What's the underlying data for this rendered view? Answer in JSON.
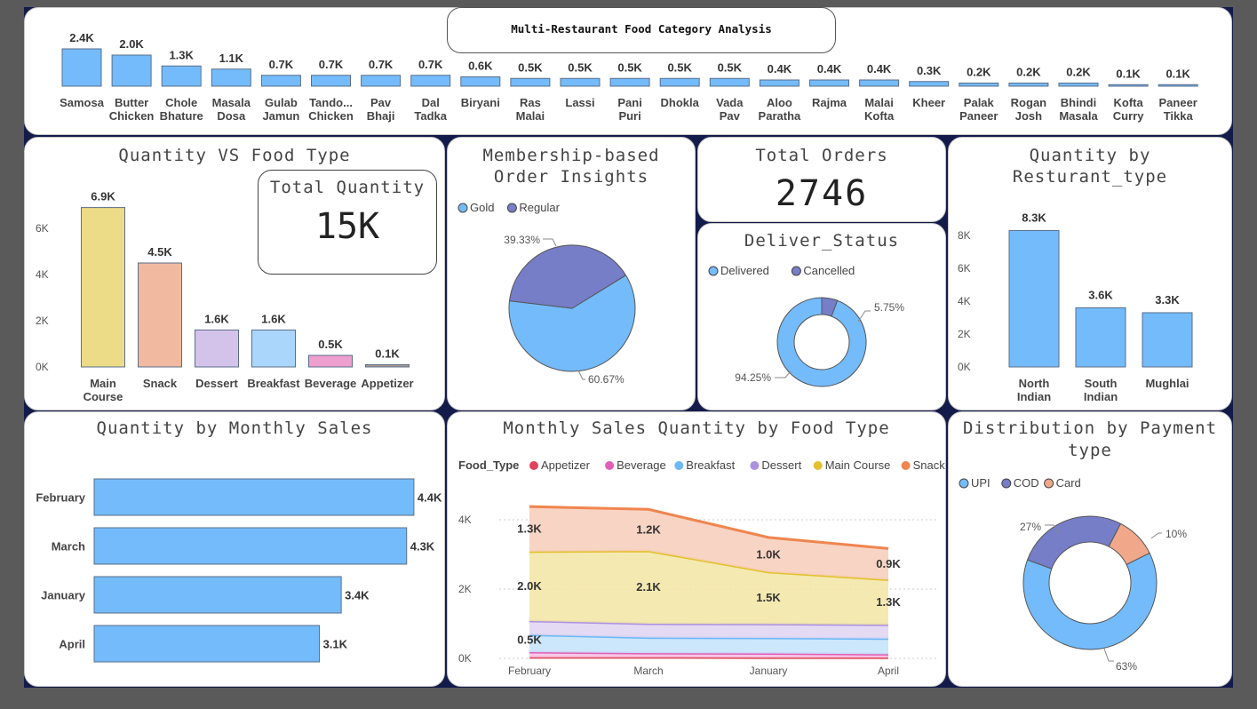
{
  "dashboard_title": "Multi-Restaurant Food Category Analysis",
  "chart_data": [
    {
      "id": "food-items",
      "type": "bar",
      "title": "",
      "categories": [
        [
          "Samosa"
        ],
        [
          "Butter",
          "Chicken"
        ],
        [
          "Chole",
          "Bhature"
        ],
        [
          "Masala",
          "Dosa"
        ],
        [
          "Gulab",
          "Jamun"
        ],
        [
          "Tando...",
          "Chicken"
        ],
        [
          "Pav",
          "Bhaji"
        ],
        [
          "Dal",
          "Tadka"
        ],
        [
          "Biryani"
        ],
        [
          "Ras",
          "Malai"
        ],
        [
          "Lassi"
        ],
        [
          "Pani",
          "Puri"
        ],
        [
          "Dhokla"
        ],
        [
          "Vada",
          "Pav"
        ],
        [
          "Aloo",
          "Paratha"
        ],
        [
          "Rajma"
        ],
        [
          "Malai",
          "Kofta"
        ],
        [
          "Kheer"
        ],
        [
          "Palak",
          "Paneer"
        ],
        [
          "Rogan",
          "Josh"
        ],
        [
          "Bhindi",
          "Masala"
        ],
        [
          "Kofta",
          "Curry"
        ],
        [
          "Paneer",
          "Tikka"
        ]
      ],
      "values": [
        2.4,
        2.0,
        1.3,
        1.1,
        0.7,
        0.7,
        0.7,
        0.7,
        0.6,
        0.5,
        0.5,
        0.5,
        0.5,
        0.5,
        0.4,
        0.4,
        0.4,
        0.3,
        0.2,
        0.2,
        0.2,
        0.1,
        0.1
      ],
      "labels": [
        "2.4K",
        "2.0K",
        "1.3K",
        "1.1K",
        "0.7K",
        "0.7K",
        "0.7K",
        "0.7K",
        "0.6K",
        "0.5K",
        "0.5K",
        "0.5K",
        "0.5K",
        "0.5K",
        "0.4K",
        "0.4K",
        "0.4K",
        "0.3K",
        "0.2K",
        "0.2K",
        "0.2K",
        "0.1K",
        "0.1K"
      ],
      "unit": "K"
    },
    {
      "id": "food-type",
      "type": "bar",
      "title": "Quantity VS Food Type",
      "categories": [
        [
          "Main",
          "Course"
        ],
        [
          "Snack"
        ],
        [
          "Dessert"
        ],
        [
          "Breakfast"
        ],
        [
          "Beverage"
        ],
        [
          "Appetizer"
        ]
      ],
      "values": [
        6.9,
        4.5,
        1.6,
        1.6,
        0.5,
        0.1
      ],
      "labels": [
        "6.9K",
        "4.5K",
        "1.6K",
        "1.6K",
        "0.5K",
        "0.1K"
      ],
      "colors": [
        "#ecdc88",
        "#f1b9a0",
        "#d3c3ea",
        "#aad6fc",
        "#ee9fcf",
        "#a89a90"
      ],
      "yticks": [
        "0K",
        "2K",
        "4K",
        "6K"
      ],
      "ylim": [
        0,
        7
      ]
    },
    {
      "id": "membership",
      "type": "pie",
      "title": "Membership-based Order Insights",
      "labels": [
        "Gold",
        "Regular"
      ],
      "values": [
        60.67,
        39.33
      ],
      "pct_labels": [
        "60.67%",
        "39.33%"
      ],
      "colors": [
        "#74bbfb",
        "#767ec8"
      ]
    },
    {
      "id": "deliver-status",
      "type": "pie",
      "title": "Deliver_Status",
      "labels": [
        "Delivered",
        "Cancelled"
      ],
      "values": [
        94.25,
        5.75
      ],
      "pct_labels": [
        "94.25%",
        "5.75%"
      ],
      "colors": [
        "#74bbfb",
        "#767ec8"
      ]
    },
    {
      "id": "restaurant-type",
      "type": "bar",
      "title": "Quantity by Resturant_type",
      "categories": [
        [
          "North",
          "Indian"
        ],
        [
          "South",
          "Indian"
        ],
        [
          "Mughlai"
        ]
      ],
      "values": [
        8.3,
        3.6,
        3.3
      ],
      "labels": [
        "8.3K",
        "3.6K",
        "3.3K"
      ],
      "yticks": [
        "0K",
        "2K",
        "4K",
        "6K",
        "8K"
      ],
      "ylim": [
        0,
        8.5
      ]
    },
    {
      "id": "monthly-sales",
      "type": "bar",
      "orientation": "horizontal",
      "title": "Quantity by Monthly Sales",
      "categories": [
        "February",
        "March",
        "January",
        "April"
      ],
      "values": [
        4.4,
        4.3,
        3.4,
        3.1
      ],
      "labels": [
        "4.4K",
        "4.3K",
        "3.4K",
        "3.1K"
      ]
    },
    {
      "id": "monthly-food-type",
      "type": "area",
      "title": "Monthly Sales Quantity by Food Type",
      "legend_title": "Food_Type",
      "x": [
        "February",
        "March",
        "January",
        "April"
      ],
      "yticks": [
        "0K",
        "2K",
        "4K"
      ],
      "ylim": [
        0,
        4.5
      ],
      "series": [
        {
          "name": "Appetizer",
          "color": "#e0445c",
          "values": [
            0.03,
            0.03,
            0.02,
            0.02
          ]
        },
        {
          "name": "Beverage",
          "color": "#e25fb8",
          "values": [
            0.15,
            0.12,
            0.12,
            0.1
          ]
        },
        {
          "name": "Breakfast",
          "color": "#6cb8f6",
          "values": [
            0.5,
            0.45,
            0.45,
            0.45
          ]
        },
        {
          "name": "Dessert",
          "color": "#ac91e0",
          "values": [
            0.4,
            0.4,
            0.4,
            0.4
          ]
        },
        {
          "name": "Main Course",
          "color": "#e3c12f",
          "values": [
            2.0,
            2.1,
            1.5,
            1.3
          ]
        },
        {
          "name": "Snack",
          "color": "#f0854f",
          "values": [
            1.3,
            1.2,
            1.0,
            0.9
          ]
        }
      ],
      "data_labels": [
        {
          "series": "Snack",
          "labels": [
            "1.3K",
            "1.2K",
            "1.0K",
            "0.9K"
          ]
        },
        {
          "series": "Main Course",
          "labels": [
            "2.0K",
            "2.1K",
            "1.5K",
            "1.3K"
          ]
        },
        {
          "series": "Breakfast",
          "labels": [
            "0.5K",
            "",
            "",
            ""
          ]
        }
      ]
    },
    {
      "id": "payment-type",
      "type": "pie",
      "title": "Distribution by Payment type",
      "labels": [
        "UPI",
        "COD",
        "Card"
      ],
      "values": [
        63,
        27,
        10
      ],
      "pct_labels": [
        "63%",
        "27%",
        "10%"
      ],
      "colors": [
        "#74bbfb",
        "#767ec8",
        "#f1a88a"
      ]
    }
  ],
  "kpis": {
    "total_quantity": {
      "label": "Total Quantity",
      "value": "15K"
    },
    "total_orders": {
      "label": "Total Orders",
      "value": "2746"
    }
  }
}
